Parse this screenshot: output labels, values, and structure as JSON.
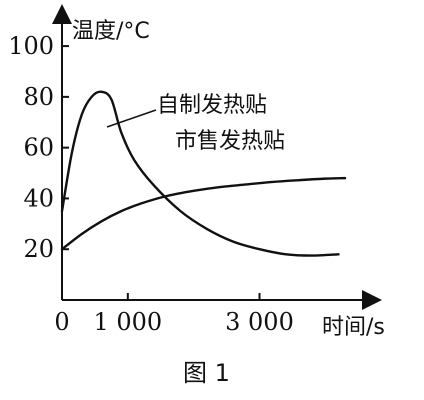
{
  "chart_data": {
    "type": "line",
    "title": "",
    "xlabel": "时间/s",
    "ylabel": "温度/°C",
    "xlim": [
      0,
      4800
    ],
    "ylim": [
      0,
      115
    ],
    "x_tick_labels": [
      "0",
      "1 000",
      "3 000"
    ],
    "x_tick_values": [
      0,
      1000,
      3000
    ],
    "y_tick_labels": [
      "20",
      "40",
      "60",
      "80",
      "100"
    ],
    "y_tick_values": [
      20,
      40,
      60,
      80,
      100
    ],
    "grid": false,
    "caption": "图 1",
    "series": [
      {
        "name": "自制发热贴",
        "x": [
          0,
          150,
          300,
          450,
          600,
          750,
          900,
          1100,
          1400,
          1800,
          2200,
          2600,
          3000,
          3400,
          3800,
          4200
        ],
        "y": [
          35,
          58,
          73,
          80,
          82,
          79,
          66,
          55,
          45,
          35,
          28,
          23,
          20,
          18,
          17.5,
          18
        ]
      },
      {
        "name": "市售发热贴",
        "x": [
          0,
          300,
          600,
          900,
          1200,
          1600,
          2000,
          2400,
          2800,
          3200,
          3600,
          4000,
          4300
        ],
        "y": [
          20,
          26,
          31,
          35,
          38,
          41,
          43,
          44.5,
          45.5,
          46.5,
          47.2,
          47.8,
          48
        ]
      }
    ]
  }
}
